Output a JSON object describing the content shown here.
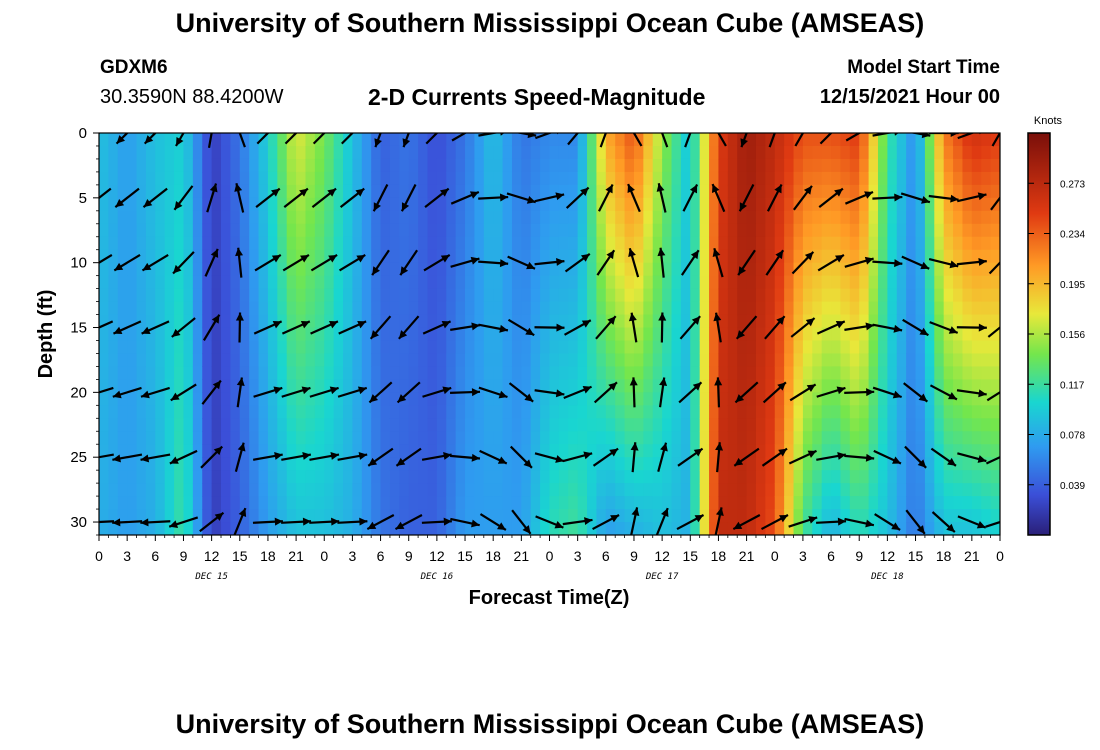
{
  "header": {
    "title": "University of Southern Mississippi Ocean Cube (AMSEAS)",
    "station": "GDXM6",
    "coords": "30.3590N  88.4200W",
    "subtitle": "2-D Currents Speed-Magnitude",
    "model_start_label": "Model Start Time",
    "model_start_value": "12/15/2021 Hour 00"
  },
  "footer": {
    "title": "University of Southern Mississippi Ocean Cube (AMSEAS)"
  },
  "chart_data": {
    "type": "heatmap",
    "title": "2-D Currents Speed-Magnitude",
    "xlabel": "Forecast Time(Z)",
    "ylabel": "Depth (ft)",
    "xlim": [
      0,
      96
    ],
    "ylim": [
      0,
      31
    ],
    "x_tick_labels": [
      "0",
      "3",
      "6",
      "9",
      "12",
      "15",
      "18",
      "21",
      "0",
      "3",
      "6",
      "9",
      "12",
      "15",
      "18",
      "21",
      "0",
      "3",
      "6",
      "9",
      "12",
      "15",
      "18",
      "21",
      "0",
      "3",
      "6",
      "9",
      "12",
      "15",
      "18",
      "21",
      "0"
    ],
    "y_ticks": [
      0,
      5,
      10,
      15,
      20,
      25,
      30
    ],
    "day_labels": [
      {
        "label": "DEC 15",
        "hour": 12
      },
      {
        "label": "DEC 16",
        "hour": 36
      },
      {
        "label": "DEC 17",
        "hour": 60
      },
      {
        "label": "DEC 18",
        "hour": 84
      }
    ],
    "colorbar": {
      "label": "Knots",
      "range": [
        0,
        0.312
      ],
      "ticks": [
        0.039,
        0.078,
        0.117,
        0.156,
        0.195,
        0.234,
        0.273
      ]
    },
    "speed_profiles": [
      {
        "hour": 0,
        "top": 0.09,
        "bottom": 0.08
      },
      {
        "hour": 3,
        "top": 0.07,
        "bottom": 0.07
      },
      {
        "hour": 6,
        "top": 0.09,
        "bottom": 0.08
      },
      {
        "hour": 9,
        "top": 0.1,
        "bottom": 0.12
      },
      {
        "hour": 12,
        "top": 0.02,
        "bottom": 0.02
      },
      {
        "hour": 15,
        "top": 0.05,
        "bottom": 0.04
      },
      {
        "hour": 18,
        "top": 0.1,
        "bottom": 0.07
      },
      {
        "hour": 21,
        "top": 0.17,
        "bottom": 0.09
      },
      {
        "hour": 24,
        "top": 0.14,
        "bottom": 0.09
      },
      {
        "hour": 27,
        "top": 0.09,
        "bottom": 0.08
      },
      {
        "hour": 30,
        "top": 0.04,
        "bottom": 0.05
      },
      {
        "hour": 33,
        "top": 0.05,
        "bottom": 0.04
      },
      {
        "hour": 36,
        "top": 0.03,
        "bottom": 0.04
      },
      {
        "hour": 39,
        "top": 0.05,
        "bottom": 0.07
      },
      {
        "hour": 42,
        "top": 0.09,
        "bottom": 0.07
      },
      {
        "hour": 45,
        "top": 0.05,
        "bottom": 0.07
      },
      {
        "hour": 48,
        "top": 0.06,
        "bottom": 0.11
      },
      {
        "hour": 51,
        "top": 0.06,
        "bottom": 0.12
      },
      {
        "hour": 54,
        "top": 0.2,
        "bottom": 0.07
      },
      {
        "hour": 57,
        "top": 0.24,
        "bottom": 0.08
      },
      {
        "hour": 60,
        "top": 0.15,
        "bottom": 0.09
      },
      {
        "hour": 63,
        "top": 0.09,
        "bottom": 0.08
      },
      {
        "hour": 66,
        "top": 0.25,
        "bottom": 0.27
      },
      {
        "hour": 69,
        "top": 0.29,
        "bottom": 0.27
      },
      {
        "hour": 72,
        "top": 0.27,
        "bottom": 0.24
      },
      {
        "hour": 75,
        "top": 0.24,
        "bottom": 0.12
      },
      {
        "hour": 78,
        "top": 0.24,
        "bottom": 0.08
      },
      {
        "hour": 81,
        "top": 0.25,
        "bottom": 0.11
      },
      {
        "hour": 84,
        "top": 0.12,
        "bottom": 0.09
      },
      {
        "hour": 87,
        "top": 0.06,
        "bottom": 0.05
      },
      {
        "hour": 90,
        "top": 0.22,
        "bottom": 0.09
      },
      {
        "hour": 93,
        "top": 0.26,
        "bottom": 0.09
      },
      {
        "hour": 96,
        "top": 0.25,
        "bottom": 0.1
      }
    ],
    "vector_grid": {
      "hour_start": 0,
      "hour_step": 3,
      "hours_count": 33,
      "depths_ft": [
        0,
        5,
        10,
        15,
        20,
        25,
        30
      ],
      "direction_deg_by_hour": [
        225,
        225,
        225,
        210,
        10,
        340,
        45,
        45,
        45,
        45,
        200,
        200,
        45,
        60,
        80,
        100,
        70,
        40,
        20,
        330,
        340,
        20,
        330,
        200,
        20,
        30,
        45,
        60,
        80,
        100,
        90,
        70,
        30
      ]
    }
  }
}
